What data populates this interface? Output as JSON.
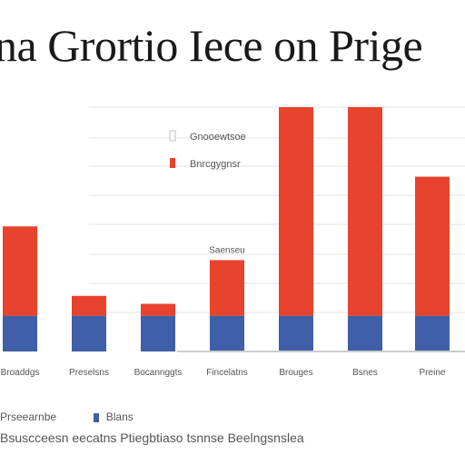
{
  "page": {
    "title": "na Grortio Iece on Prige"
  },
  "colors": {
    "series_top": "#e8432d",
    "series_bottom": "#3f5fa8",
    "grid": "#e3e3e3",
    "axis": "#cccccc"
  },
  "chart_data": {
    "type": "bar",
    "stacked": true,
    "title": "",
    "xlabel": "",
    "ylabel": "",
    "categories": [
      "Broaddgs",
      "Preselsns",
      "Bocannggts",
      "Fincelatns",
      "Brouges",
      "Bsnes",
      "Preine"
    ],
    "series": [
      {
        "name": "Gnooewtsoe",
        "color_key": "series_bottom",
        "values": [
          18,
          18,
          18,
          18,
          18,
          18,
          18
        ]
      },
      {
        "name": "Bnrcgygnsr",
        "color_key": "series_top",
        "values": [
          45,
          10,
          6,
          28,
          105,
          105,
          70
        ]
      }
    ],
    "annotations": [
      {
        "category_index": 3,
        "text": "Saenseu"
      }
    ],
    "ylim": [
      0,
      123
    ],
    "grid": true,
    "legend_position": "top-left"
  },
  "footer": {
    "row1": [
      "Prseearnbe",
      "Blans"
    ],
    "row2": "Bsuscceesn eecatns Ptiegbtiaso tsnnse Beelngsnslea"
  }
}
